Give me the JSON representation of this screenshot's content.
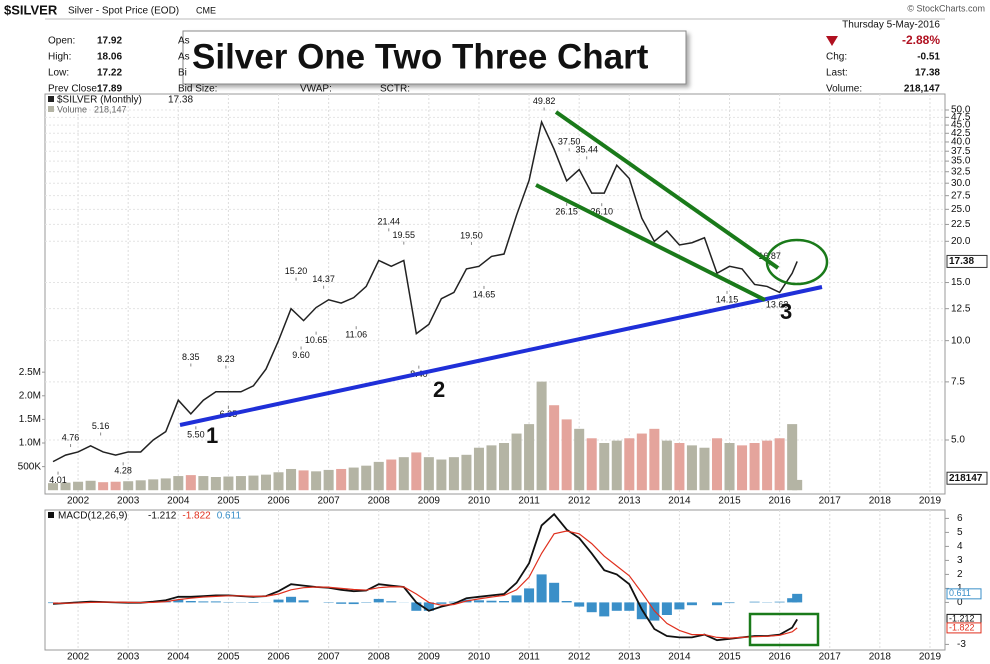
{
  "header": {
    "symbol": "$SILVER",
    "name": "Silver - Spot Price (EOD)",
    "exchange": "CME",
    "fields": [
      [
        "Open:",
        "17.92"
      ],
      [
        "High:",
        "18.06"
      ],
      [
        "Low:",
        "17.22"
      ],
      [
        "Prev Close:",
        "17.89"
      ]
    ],
    "col2": [
      "As",
      "As",
      "Bi",
      "Bid Size:"
    ],
    "col3": [
      "VWAP:",
      "SCTR:"
    ],
    "date": "Thursday  5-May-2016",
    "change_pct": "-2.88%",
    "right": [
      [
        "Chg:",
        "-0.51"
      ],
      [
        "Last:",
        "17.38"
      ],
      [
        "Volume:",
        "218,147"
      ]
    ],
    "copyright": "© StockCharts.com"
  },
  "overlay_title": "Silver One Two Three Chart",
  "chart_data": [
    {
      "type": "line",
      "legend": "$SILVER (Monthly)",
      "color": "#222222",
      "log_scale": true,
      "grid": true,
      "xlim": [
        2001.34,
        2019.3
      ],
      "xticks": [
        2002,
        2003,
        2004,
        2005,
        2006,
        2007,
        2008,
        2009,
        2010,
        2011,
        2012,
        2013,
        2014,
        2015,
        2016,
        2017,
        2018,
        2019
      ],
      "ylim": [
        3.43,
        52.5
      ],
      "yticks": [
        {
          "value": 50,
          "label": "50.0"
        },
        {
          "value": 47.5,
          "label": "47.5"
        },
        {
          "value": 45,
          "label": "45.0"
        },
        {
          "value": 42.5,
          "label": "42.5"
        },
        {
          "value": 40,
          "label": "40.0"
        },
        {
          "value": 37.5,
          "label": "37.5"
        },
        {
          "value": 35,
          "label": "35.0"
        },
        {
          "value": 32.5,
          "label": "32.5"
        },
        {
          "value": 30,
          "label": "30.0"
        },
        {
          "value": 27.5,
          "label": "27.5"
        },
        {
          "value": 25,
          "label": "25.0"
        },
        {
          "value": 22.5,
          "label": "22.5"
        },
        {
          "value": 20,
          "label": "20.0"
        },
        {
          "value": 15,
          "label": "15.0"
        },
        {
          "value": 12.5,
          "label": "12.5"
        },
        {
          "value": 10,
          "label": "10.0"
        },
        {
          "value": 7.5,
          "label": "7.5"
        },
        {
          "value": 5,
          "label": "5.0"
        }
      ],
      "x": [
        2001.5,
        2001.75,
        2002,
        2002.25,
        2002.5,
        2002.75,
        2003,
        2003.25,
        2003.5,
        2003.75,
        2004,
        2004.25,
        2004.5,
        2004.75,
        2005,
        2005.25,
        2005.5,
        2005.75,
        2006,
        2006.25,
        2006.5,
        2006.75,
        2007,
        2007.25,
        2007.5,
        2007.75,
        2008,
        2008.25,
        2008.5,
        2008.75,
        2009,
        2009.25,
        2009.5,
        2009.75,
        2010,
        2010.25,
        2010.5,
        2010.75,
        2011,
        2011.25,
        2011.5,
        2011.75,
        2012,
        2012.25,
        2012.5,
        2012.75,
        2013,
        2013.25,
        2013.5,
        2013.75,
        2014,
        2014.25,
        2014.5,
        2014.75,
        2015,
        2015.25,
        2015.5,
        2015.75,
        2016,
        2016.25,
        2016.35
      ],
      "values": [
        4.3,
        4.5,
        4.6,
        4.8,
        4.6,
        4.5,
        4.6,
        4.6,
        5.0,
        5.3,
        6.6,
        6.0,
        6.6,
        7.0,
        7.0,
        7.0,
        7.3,
        8.2,
        10.0,
        12.5,
        11.5,
        12.6,
        13.3,
        13.0,
        13.5,
        14.6,
        17.5,
        16.8,
        17.5,
        10.5,
        11.2,
        13.4,
        14.0,
        16.5,
        16.8,
        18.0,
        18.3,
        24.0,
        30.6,
        46.0,
        38.0,
        30.5,
        33.0,
        28.0,
        28.0,
        34.0,
        31.0,
        23.5,
        20.0,
        21.5,
        19.5,
        19.8,
        20.5,
        16.0,
        16.8,
        16.5,
        14.8,
        14.6,
        14.0,
        16.0,
        17.38
      ],
      "price_labels": [
        {
          "x": 2001.6,
          "value": 4.01,
          "label": "4.01"
        },
        {
          "x": 2001.85,
          "value": 4.76,
          "label": "4.76"
        },
        {
          "x": 2002.45,
          "value": 5.16,
          "label": "5.16"
        },
        {
          "x": 2002.9,
          "value": 4.28,
          "label": "4.28"
        },
        {
          "x": 2004.25,
          "value": 8.35,
          "label": "8.35"
        },
        {
          "x": 2004.35,
          "value": 5.5,
          "label": "5.50"
        },
        {
          "x": 2004.95,
          "value": 8.23,
          "label": "8.23"
        },
        {
          "x": 2005.0,
          "value": 6.35,
          "label": "6.35"
        },
        {
          "x": 2006.35,
          "value": 15.2,
          "label": "15.20"
        },
        {
          "x": 2006.45,
          "value": 9.6,
          "label": "9.60"
        },
        {
          "x": 2006.75,
          "value": 10.65,
          "label": "10.65"
        },
        {
          "x": 2006.9,
          "value": 14.37,
          "label": "14.37"
        },
        {
          "x": 2007.55,
          "value": 11.06,
          "label": "11.06"
        },
        {
          "x": 2008.2,
          "value": 21.44,
          "label": "21.44"
        },
        {
          "x": 2008.5,
          "value": 19.55,
          "label": "19.55"
        },
        {
          "x": 2008.8,
          "value": 8.4,
          "label": "8.40"
        },
        {
          "x": 2009.85,
          "value": 19.5,
          "label": "19.50"
        },
        {
          "x": 2010.1,
          "value": 14.65,
          "label": "14.65"
        },
        {
          "x": 2011.3,
          "value": 49.82,
          "label": "49.82"
        },
        {
          "x": 2011.8,
          "value": 37.5,
          "label": "37.50"
        },
        {
          "x": 2011.75,
          "value": 26.15,
          "label": "26.15"
        },
        {
          "x": 2012.15,
          "value": 35.44,
          "label": "35.44"
        },
        {
          "x": 2012.45,
          "value": 26.1,
          "label": "26.10"
        },
        {
          "x": 2014.95,
          "value": 14.15,
          "label": "14.15"
        },
        {
          "x": 2015.8,
          "value": 16.87,
          "label": "16.87"
        },
        {
          "x": 2015.95,
          "value": 13.63,
          "label": "13.63"
        }
      ],
      "annotations": [
        "1",
        "2",
        "3"
      ]
    },
    {
      "type": "bar",
      "legend": "Volume",
      "legend_value": "218,147",
      "up_color": "#b4b4a4",
      "down_color": "#e4a49c",
      "ylim": [
        -80000,
        8200000
      ],
      "yticks": [
        {
          "value": 2500000,
          "label": "2.5M"
        },
        {
          "value": 2000000,
          "label": "2.0M"
        },
        {
          "value": 1500000,
          "label": "1.5M"
        },
        {
          "value": 1000000,
          "label": "1.0M"
        },
        {
          "value": 500000,
          "label": "500K"
        }
      ],
      "values": [
        150000,
        160000,
        180000,
        200000,
        170000,
        180000,
        190000,
        210000,
        230000,
        250000,
        300000,
        320000,
        300000,
        280000,
        290000,
        300000,
        310000,
        330000,
        380000,
        450000,
        420000,
        400000,
        430000,
        450000,
        480000,
        520000,
        600000,
        650000,
        700000,
        800000,
        700000,
        650000,
        700000,
        750000,
        900000,
        950000,
        1000000,
        1200000,
        1400000,
        2300000,
        1800000,
        1500000,
        1300000,
        1100000,
        1000000,
        1050000,
        1100000,
        1200000,
        1300000,
        1050000,
        1000000,
        950000,
        900000,
        1100000,
        1000000,
        950000,
        1000000,
        1050000,
        1100000,
        1400000,
        218147
      ]
    },
    {
      "type": "macd",
      "legend": "MACD(12,26,9)",
      "ylim": [
        -3.4,
        6.6
      ],
      "yticks": [
        6,
        5,
        4,
        3,
        2,
        1,
        0,
        -3
      ],
      "series": [
        {
          "color": "#111111",
          "values": [
            -0.1,
            -0.05,
            0,
            0.05,
            0.03,
            0,
            -0.02,
            -0.02,
            0.05,
            0.15,
            0.4,
            0.4,
            0.45,
            0.5,
            0.5,
            0.45,
            0.4,
            0.45,
            0.8,
            1.3,
            1.2,
            1.1,
            1.05,
            0.9,
            0.8,
            0.85,
            1.3,
            1.2,
            1.1,
            0.0,
            -0.6,
            -0.3,
            -0.1,
            0.3,
            0.4,
            0.5,
            0.6,
            1.4,
            2.8,
            5.5,
            6.3,
            5.2,
            4.6,
            3.5,
            2.3,
            2.0,
            1.3,
            -0.5,
            -1.9,
            -2.4,
            -2.5,
            -2.5,
            -2.3,
            -2.7,
            -2.6,
            -2.5,
            -2.4,
            -2.4,
            -2.3,
            -1.8,
            -1.212
          ]
        },
        {
          "color": "#e0301e",
          "values": [
            -0.05,
            -0.06,
            -0.04,
            0,
            0.02,
            0.02,
            0,
            -0.01,
            0,
            0.05,
            0.2,
            0.3,
            0.38,
            0.43,
            0.47,
            0.47,
            0.44,
            0.44,
            0.6,
            0.9,
            1.05,
            1.1,
            1.08,
            1.0,
            0.92,
            0.88,
            1.05,
            1.12,
            1.11,
            0.6,
            0.0,
            -0.2,
            -0.15,
            0.1,
            0.25,
            0.38,
            0.5,
            0.9,
            1.8,
            3.5,
            4.9,
            5.1,
            4.9,
            4.2,
            3.3,
            2.6,
            1.9,
            0.7,
            -0.6,
            -1.5,
            -2.0,
            -2.3,
            -2.3,
            -2.5,
            -2.55,
            -2.5,
            -2.45,
            -2.42,
            -2.35,
            -2.1,
            -1.822
          ]
        },
        {
          "color": "#3a8fc8",
          "values": [
            -0.05,
            0.01,
            0.04,
            0.05,
            0.01,
            -0.02,
            -0.02,
            -0.01,
            0.05,
            0.1,
            0.2,
            0.1,
            0.07,
            0.07,
            0.03,
            -0.02,
            -0.04,
            0.01,
            0.2,
            0.4,
            0.15,
            0,
            -0.03,
            -0.1,
            -0.12,
            -0.03,
            0.25,
            0.08,
            -0.01,
            -0.6,
            -0.6,
            -0.1,
            0.05,
            0.2,
            0.15,
            0.12,
            0.1,
            0.5,
            1.0,
            2.0,
            1.4,
            0.1,
            -0.3,
            -0.7,
            -1.0,
            -0.6,
            -0.6,
            -1.2,
            -1.3,
            -0.9,
            -0.5,
            -0.2,
            0,
            -0.2,
            -0.05,
            0,
            0.05,
            0.02,
            0.05,
            0.3,
            0.611
          ]
        }
      ]
    }
  ]
}
